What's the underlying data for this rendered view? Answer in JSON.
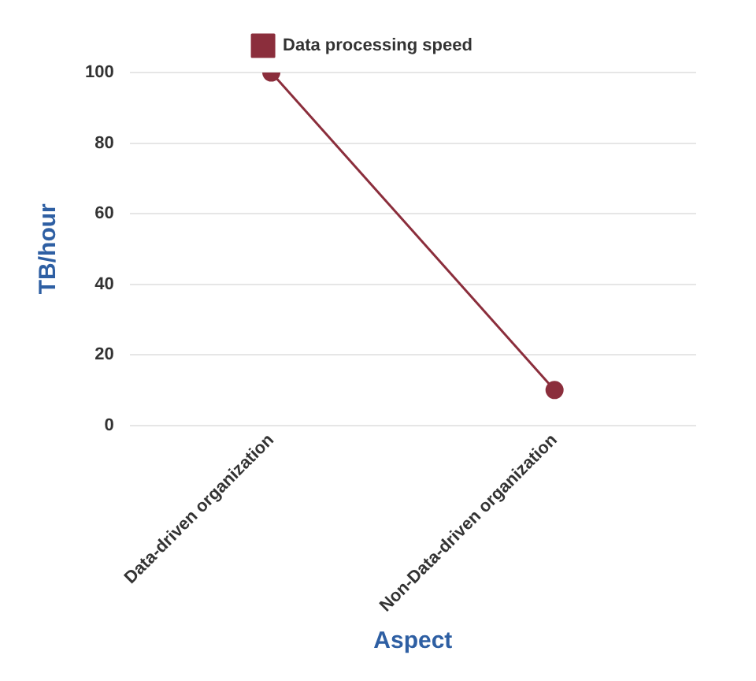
{
  "chart_data": {
    "type": "line",
    "categories": [
      "Data-driven organization",
      "Non-Data-driven organization"
    ],
    "series": [
      {
        "name": "Data processing speed",
        "color": "#8b2e3c",
        "values": [
          100,
          10
        ]
      }
    ],
    "xlabel": "Aspect",
    "ylabel": "TB/hour",
    "ylim": [
      0,
      100
    ],
    "yticks": [
      0,
      20,
      40,
      60,
      80,
      100
    ],
    "grid": "y",
    "legend": "top",
    "marker": "circle",
    "line_style": "solid"
  }
}
